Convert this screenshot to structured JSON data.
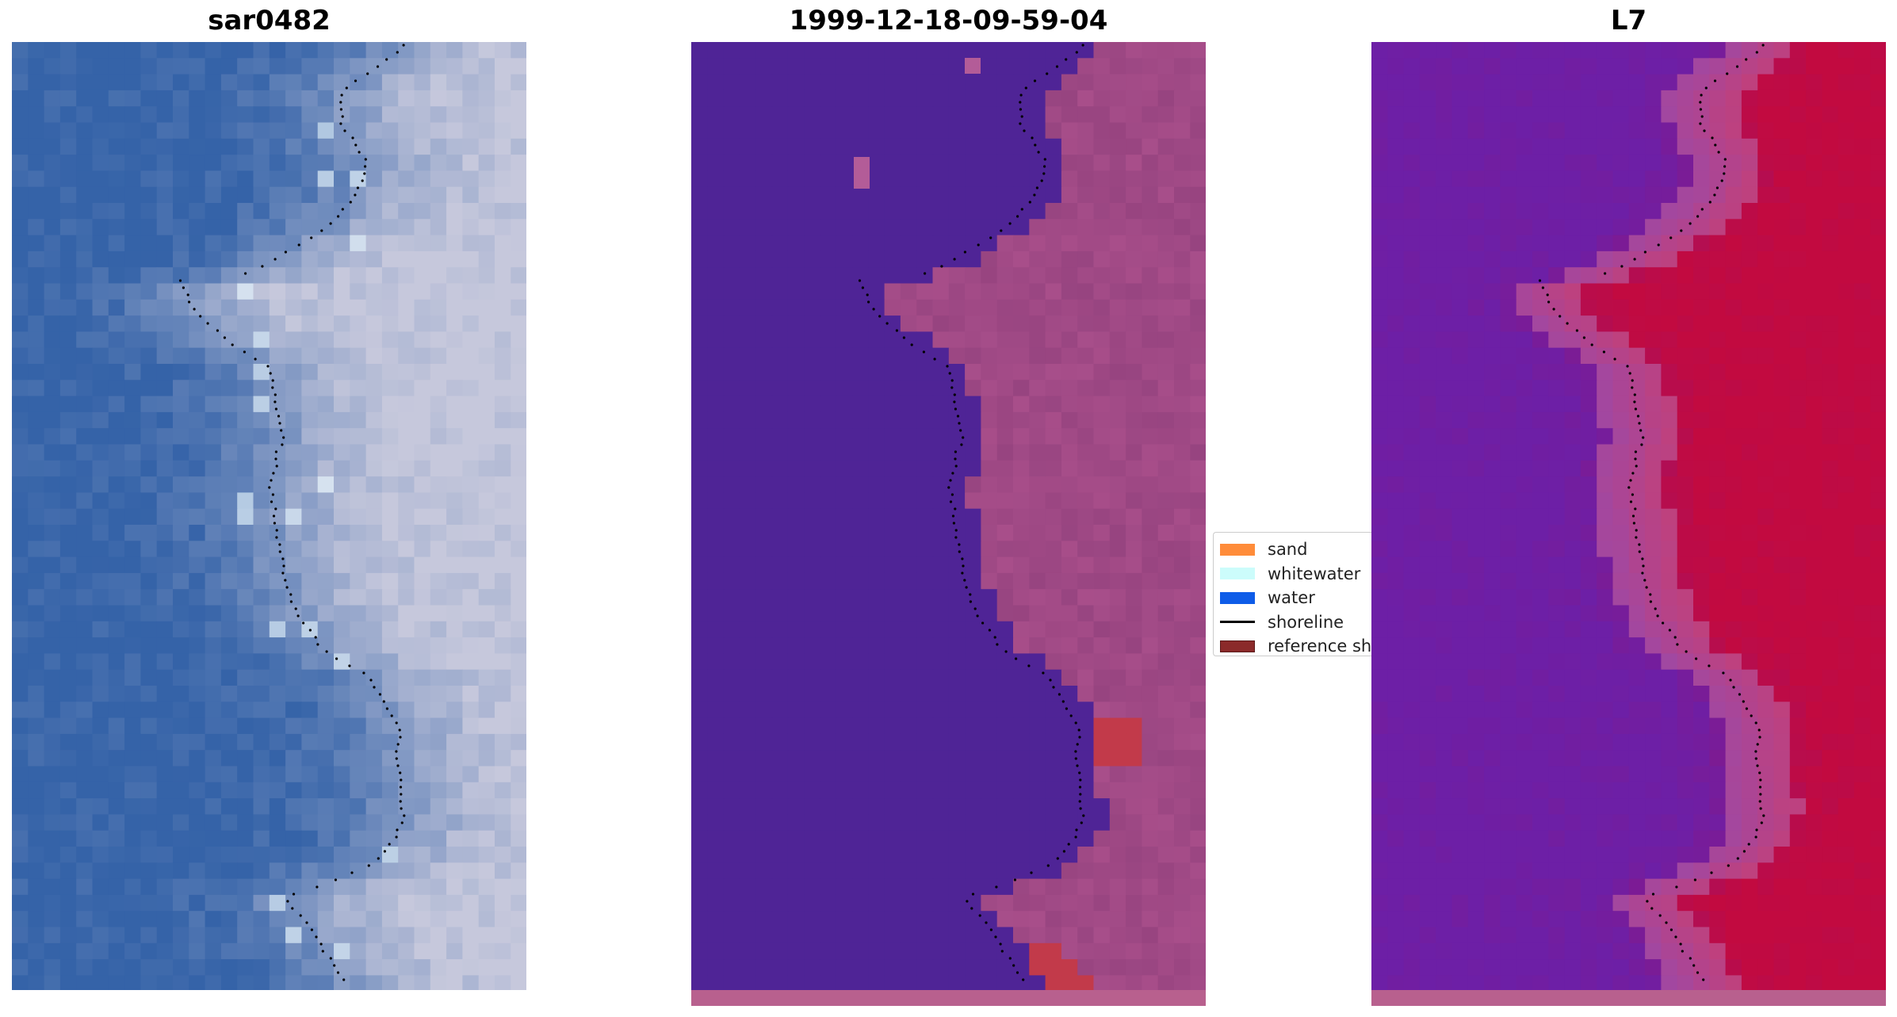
{
  "panels": [
    {
      "title": "sar0482",
      "image": "rgb-satellite-image"
    },
    {
      "title": "1999-12-18-09-59-04",
      "image": "classified-image"
    },
    {
      "title": "L7",
      "image": "ndwi-image"
    }
  ],
  "legend": {
    "items": [
      {
        "label": "sand",
        "kind": "patch",
        "color": "#ff8c3a"
      },
      {
        "label": "whitewater",
        "kind": "patch",
        "color": "#ccfcfb"
      },
      {
        "label": "water",
        "kind": "patch",
        "color": "#0e5ce8"
      },
      {
        "label": "shoreline",
        "kind": "line",
        "color": "#000000"
      },
      {
        "label": "reference shoreline",
        "kind": "patch",
        "color": "#8b2a2a"
      }
    ]
  },
  "colors": {
    "rgb_water": "#3563a8",
    "rgb_land": "#c6c8dc",
    "class_water": "#4f2496",
    "class_land": "#a84e8a",
    "class_sand": "#c23a4a",
    "ndwi_water": "#6d1fa6",
    "ndwi_land": "#c20a40",
    "ndwi_edge": "#c46ba6",
    "shoreline": "#000000"
  }
}
